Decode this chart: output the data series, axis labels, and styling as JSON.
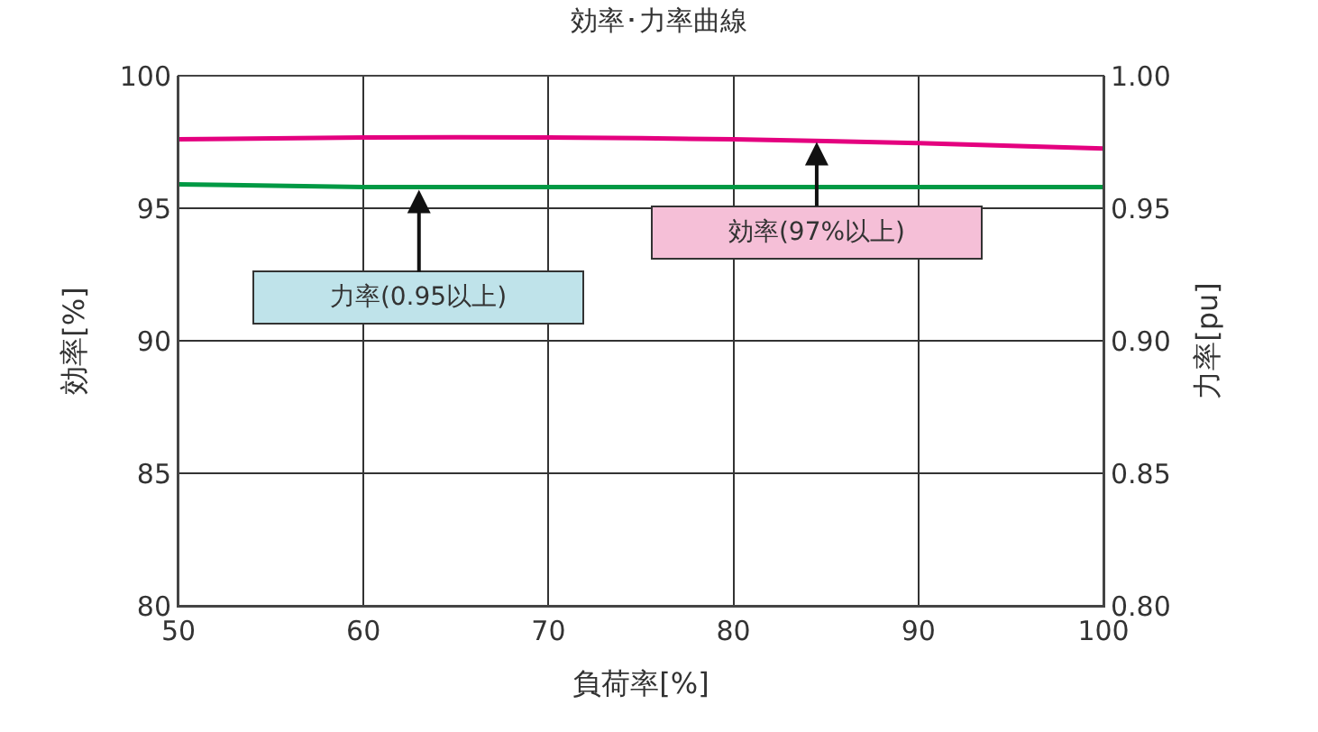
{
  "chart_data": {
    "type": "line",
    "title": "効率･力率曲線",
    "xlabel": "負荷率[%]",
    "ylabel": "効率[%]",
    "y2label": "力率[pu]",
    "xlim": [
      50,
      100
    ],
    "xticks": [
      50,
      60,
      70,
      80,
      90,
      100
    ],
    "ylim": [
      80,
      100
    ],
    "yticks": [
      80,
      85,
      90,
      95,
      100
    ],
    "y2lim": [
      0.8,
      1.0
    ],
    "y2ticks": [
      {
        "value": 0.8,
        "label": "0.80"
      },
      {
        "value": 0.85,
        "label": "0.85"
      },
      {
        "value": 0.9,
        "label": "0.90"
      },
      {
        "value": 0.95,
        "label": "0.95"
      },
      {
        "value": 1.0,
        "label": "1.00"
      }
    ],
    "grid": true,
    "series": [
      {
        "color": "#e4007f",
        "x": [
          50,
          60,
          70,
          80,
          90,
          100
        ],
        "values": [
          97.6,
          97.67,
          97.67,
          97.6,
          97.46,
          97.25
        ]
      },
      {
        "color": "#009944",
        "axis": "y2",
        "x": [
          50,
          60,
          70,
          80,
          90,
          100
        ],
        "values": [
          0.959,
          0.958,
          0.958,
          0.958,
          0.958,
          0.958
        ]
      }
    ],
    "annotations": [
      {
        "text": "力率(0.95以上)",
        "x": 63,
        "y": 95.7
      },
      {
        "text": "効率(97%以上)",
        "x": 84.5,
        "y": 97.5
      }
    ]
  }
}
